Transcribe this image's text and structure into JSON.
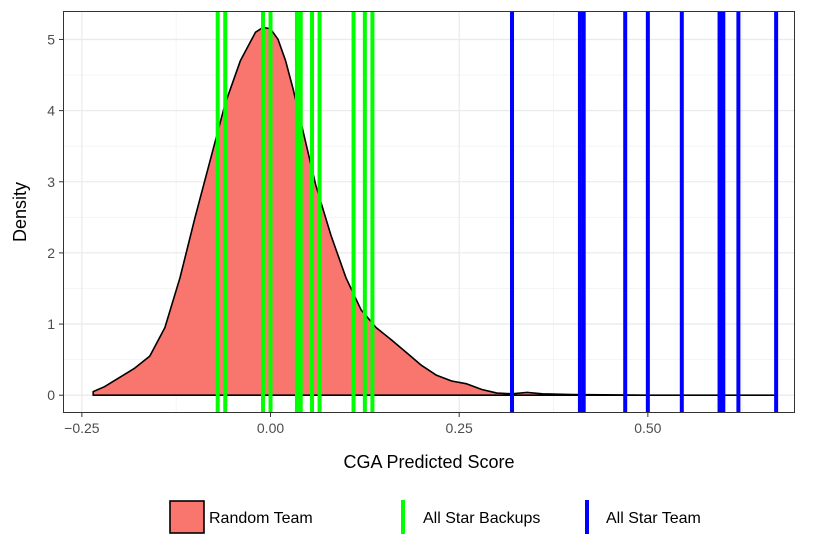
{
  "chart_data": {
    "type": "area",
    "xlabel": "CGA Predicted Score",
    "ylabel": "Density",
    "xlim": [
      -0.275,
      0.695
    ],
    "ylim": [
      -0.25,
      5.4
    ],
    "x_ticks": [
      -0.25,
      0.0,
      0.25,
      0.5
    ],
    "x_tick_labels": [
      "−0.25",
      "0.00",
      "0.25",
      "0.50"
    ],
    "y_ticks": [
      0,
      1,
      2,
      3,
      4,
      5
    ],
    "y_tick_labels": [
      "0",
      "1",
      "2",
      "3",
      "4",
      "5"
    ],
    "grid": true,
    "legend_position": "bottom",
    "series": [
      {
        "name": "Random Team",
        "kind": "density",
        "color": "#F8766D",
        "x": [
          -0.235,
          -0.22,
          -0.2,
          -0.18,
          -0.16,
          -0.14,
          -0.12,
          -0.1,
          -0.08,
          -0.06,
          -0.04,
          -0.02,
          -0.01,
          0.0,
          0.01,
          0.02,
          0.03,
          0.04,
          0.05,
          0.06,
          0.08,
          0.1,
          0.12,
          0.14,
          0.16,
          0.18,
          0.2,
          0.22,
          0.24,
          0.26,
          0.28,
          0.3,
          0.32,
          0.34,
          0.36,
          0.4,
          0.5,
          0.6,
          0.67
        ],
        "y": [
          0.05,
          0.12,
          0.25,
          0.38,
          0.55,
          0.95,
          1.65,
          2.5,
          3.3,
          4.1,
          4.7,
          5.1,
          5.17,
          5.15,
          5.0,
          4.7,
          4.3,
          3.85,
          3.4,
          2.95,
          2.25,
          1.65,
          1.2,
          0.95,
          0.78,
          0.6,
          0.42,
          0.28,
          0.2,
          0.16,
          0.08,
          0.03,
          0.02,
          0.04,
          0.02,
          0.01,
          0.0,
          0.0,
          0.0
        ]
      },
      {
        "name": "All Star Backups",
        "kind": "vline",
        "color": "#00FF00",
        "x": [
          -0.07,
          -0.06,
          -0.01,
          0.0,
          0.035,
          0.04,
          0.055,
          0.065,
          0.11,
          0.125,
          0.135
        ]
      },
      {
        "name": "All Star Team",
        "kind": "vline",
        "color": "#0000FF",
        "x": [
          0.32,
          0.41,
          0.415,
          0.47,
          0.5,
          0.545,
          0.595,
          0.6,
          0.62,
          0.67
        ]
      }
    ]
  }
}
